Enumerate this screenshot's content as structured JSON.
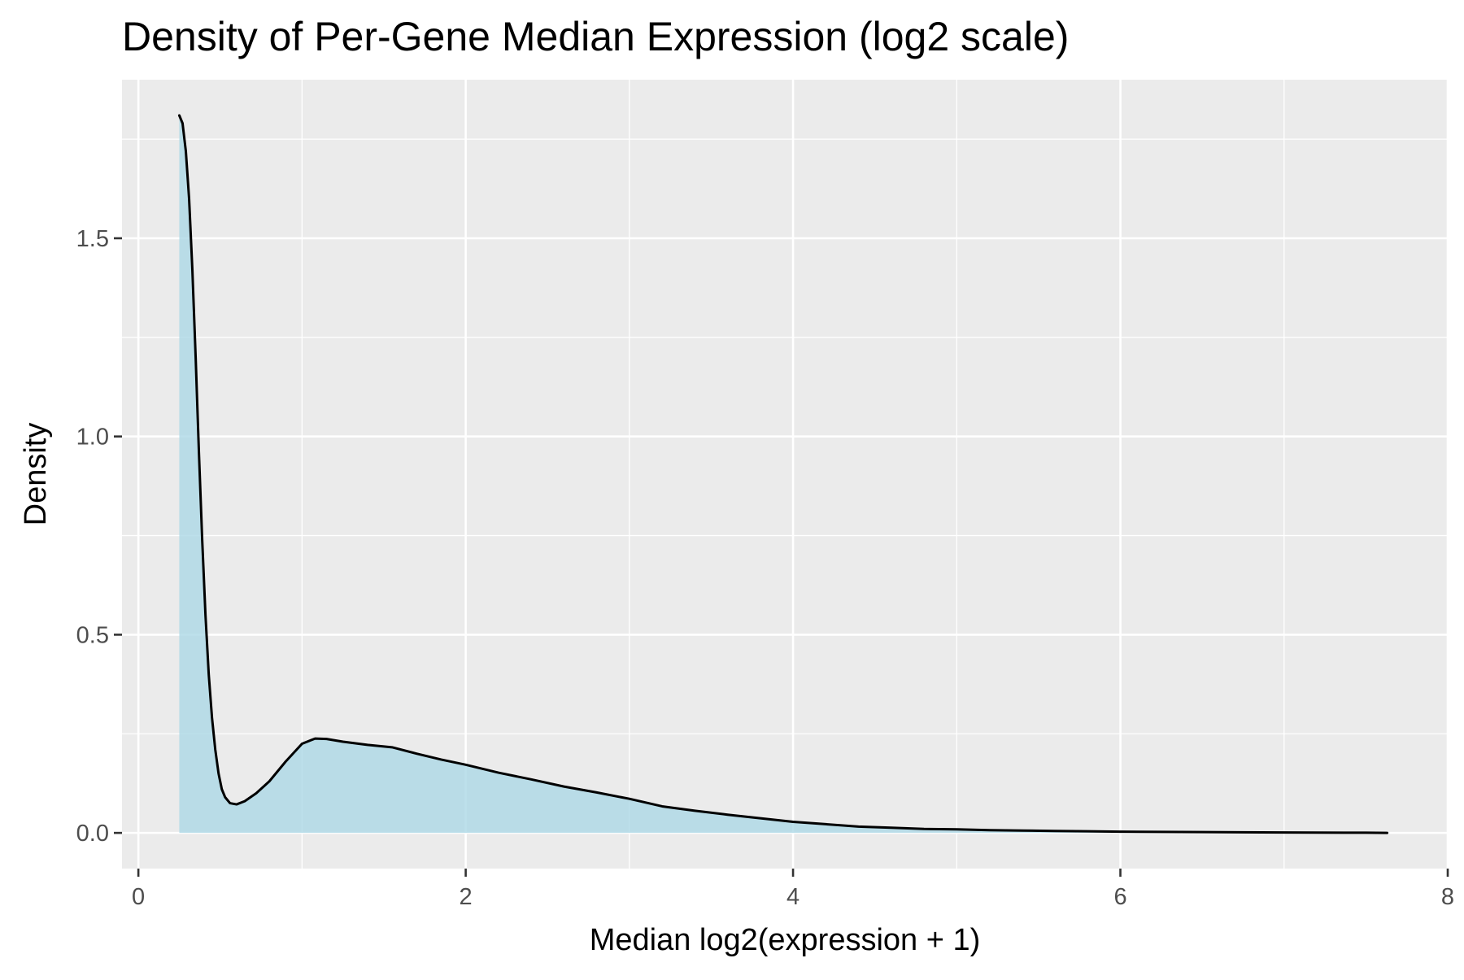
{
  "chart_data": {
    "type": "area",
    "title": "Density of Per-Gene Median Expression (log2 scale)",
    "xlabel": "Median log2(expression + 1)",
    "ylabel": "Density",
    "xlim": [
      -0.1,
      8.0
    ],
    "ylim": [
      -0.09,
      1.9
    ],
    "x_ticks": [
      0,
      2,
      4,
      6,
      8
    ],
    "y_ticks": [
      0.0,
      0.5,
      1.0,
      1.5
    ],
    "x_tick_labels": [
      "0",
      "2",
      "4",
      "6",
      "8"
    ],
    "y_tick_labels": [
      "0.0",
      "0.5",
      "1.0",
      "1.5"
    ],
    "grid": true,
    "legend": "none",
    "colors": {
      "panel_background": "#EBEBEB",
      "grid_line": "#FFFFFF",
      "fill": "#ADD8E6",
      "line": "#000000",
      "tick": "#333333"
    },
    "series": [
      {
        "x": [
          0.25,
          0.27,
          0.29,
          0.31,
          0.33,
          0.35,
          0.37,
          0.39,
          0.41,
          0.43,
          0.45,
          0.47,
          0.49,
          0.51,
          0.53,
          0.56,
          0.6,
          0.65,
          0.72,
          0.8,
          0.9,
          1.0,
          1.08,
          1.15,
          1.25,
          1.4,
          1.55,
          1.7,
          1.85,
          2.0,
          2.2,
          2.4,
          2.6,
          2.8,
          3.0,
          3.2,
          3.4,
          3.6,
          3.8,
          4.0,
          4.2,
          4.4,
          4.6,
          4.8,
          5.0,
          5.2,
          5.4,
          5.6,
          5.8,
          6.0,
          6.5,
          7.0,
          7.5,
          7.63
        ],
        "y": [
          1.81,
          1.79,
          1.72,
          1.6,
          1.42,
          1.2,
          0.96,
          0.74,
          0.55,
          0.4,
          0.29,
          0.21,
          0.15,
          0.11,
          0.09,
          0.075,
          0.072,
          0.08,
          0.1,
          0.13,
          0.18,
          0.225,
          0.238,
          0.237,
          0.23,
          0.222,
          0.216,
          0.2,
          0.185,
          0.172,
          0.152,
          0.135,
          0.117,
          0.102,
          0.086,
          0.067,
          0.056,
          0.046,
          0.037,
          0.028,
          0.022,
          0.016,
          0.013,
          0.01,
          0.009,
          0.007,
          0.006,
          0.005,
          0.004,
          0.003,
          0.002,
          0.001,
          0.0005,
          0.0
        ]
      }
    ]
  }
}
